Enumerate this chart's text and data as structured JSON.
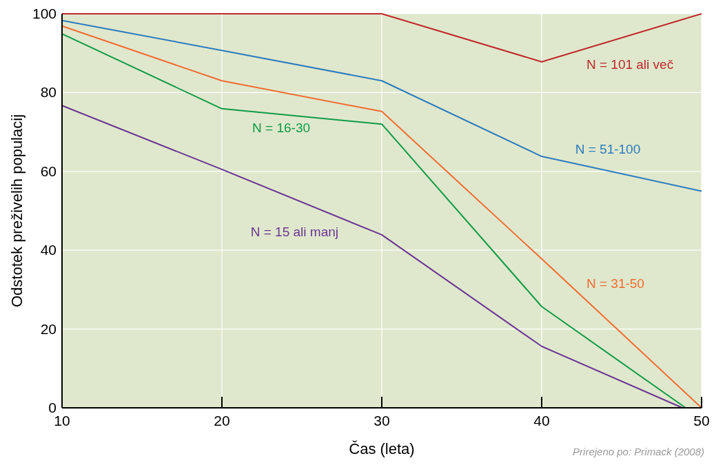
{
  "chart_data": {
    "type": "line",
    "xlabel": "Čas (leta)",
    "ylabel": "Odstotek preživelih populacij",
    "xlim": [
      10,
      50
    ],
    "ylim": [
      0,
      100
    ],
    "xticks": [
      10,
      20,
      30,
      40,
      50
    ],
    "yticks": [
      0,
      20,
      40,
      60,
      80,
      100
    ],
    "grid": true,
    "marker": "none",
    "line_style": "solid",
    "series": [
      {
        "name": "N = 101 ali več",
        "color": "#c1272d",
        "x": [
          10,
          20,
          30,
          40,
          50
        ],
        "values": [
          100,
          100,
          100,
          87.8,
          100
        ]
      },
      {
        "name": "N = 51-100",
        "color": "#2b7bc0",
        "x": [
          10,
          20,
          30,
          40,
          50
        ],
        "values": [
          98.3,
          90.7,
          83,
          63.8,
          55
        ]
      },
      {
        "name": "N = 31-50",
        "color": "#f26b32",
        "x": [
          10,
          20,
          30,
          40,
          50
        ],
        "values": [
          96.9,
          83,
          75.2,
          37.8,
          0
        ]
      },
      {
        "name": "N = 16-30",
        "color": "#0f9a48",
        "x": [
          10,
          20,
          30,
          40,
          49
        ],
        "values": [
          94.9,
          75.9,
          72,
          25.7,
          0
        ]
      },
      {
        "name": "N = 15 ali manj",
        "color": "#6b3494",
        "x": [
          10,
          20,
          30,
          40,
          48.8
        ],
        "values": [
          76.7,
          60.5,
          43.9,
          15.6,
          0
        ]
      }
    ],
    "annotations": [
      "Prirejeno po: Primack (2008)"
    ]
  }
}
